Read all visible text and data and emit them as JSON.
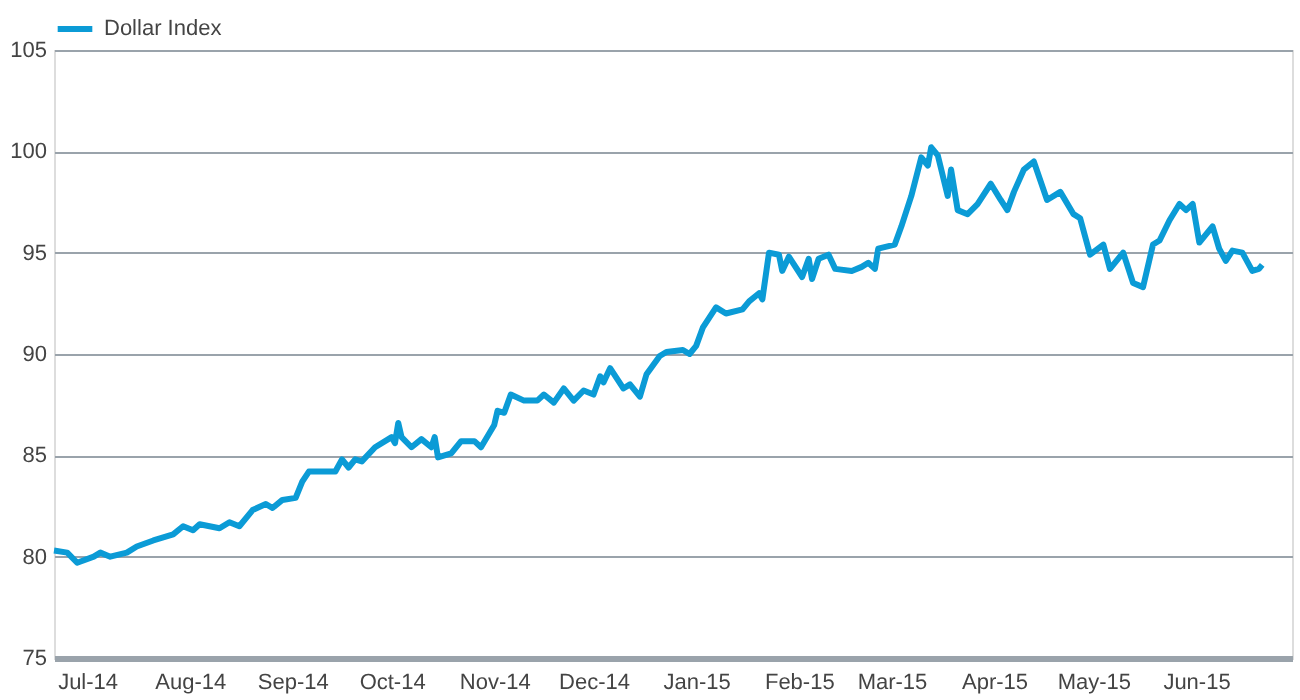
{
  "chart_data": {
    "type": "line",
    "x": [
      "2014-06-21",
      "2014-06-25",
      "2014-06-28",
      "2014-07-03",
      "2014-07-05",
      "2014-07-08",
      "2014-07-13",
      "2014-07-16",
      "2014-07-21",
      "2014-07-27",
      "2014-07-30",
      "2014-08-02",
      "2014-08-04",
      "2014-08-10",
      "2014-08-13",
      "2014-08-16",
      "2014-08-20",
      "2014-08-24",
      "2014-08-26",
      "2014-08-29",
      "2014-09-02",
      "2014-09-04",
      "2014-09-06",
      "2014-09-14",
      "2014-09-16",
      "2014-09-18",
      "2014-09-20",
      "2014-09-22",
      "2014-09-26",
      "2014-10-01",
      "2014-10-02",
      "2014-10-03",
      "2014-10-04",
      "2014-10-07",
      "2014-10-10",
      "2014-10-13",
      "2014-10-14",
      "2014-10-15",
      "2014-10-19",
      "2014-10-22",
      "2014-10-26",
      "2014-10-28",
      "2014-11-01",
      "2014-11-02",
      "2014-11-04",
      "2014-11-06",
      "2014-11-10",
      "2014-11-14",
      "2014-11-16",
      "2014-11-19",
      "2014-11-22",
      "2014-11-25",
      "2014-11-28",
      "2014-12-01",
      "2014-12-03",
      "2014-12-04",
      "2014-12-06",
      "2014-12-10",
      "2014-12-12",
      "2014-12-15",
      "2014-12-17",
      "2014-12-21",
      "2014-12-23",
      "2014-12-28",
      "2014-12-30",
      "2015-01-01",
      "2015-01-03",
      "2015-01-07",
      "2015-01-10",
      "2015-01-15",
      "2015-01-17",
      "2015-01-20",
      "2015-01-21",
      "2015-01-23",
      "2015-01-26",
      "2015-01-27",
      "2015-01-29",
      "2015-02-02",
      "2015-02-04",
      "2015-02-05",
      "2015-02-07",
      "2015-02-10",
      "2015-02-12",
      "2015-02-17",
      "2015-02-20",
      "2015-02-22",
      "2015-02-24",
      "2015-02-25",
      "2015-03-02",
      "2015-03-04",
      "2015-03-07",
      "2015-03-10",
      "2015-03-12",
      "2015-03-13",
      "2015-03-15",
      "2015-03-18",
      "2015-03-19",
      "2015-03-21",
      "2015-03-24",
      "2015-03-27",
      "2015-03-31",
      "2015-04-03",
      "2015-04-05",
      "2015-04-07",
      "2015-04-10",
      "2015-04-13",
      "2015-04-17",
      "2015-04-21",
      "2015-04-25",
      "2015-04-27",
      "2015-04-30",
      "2015-05-04",
      "2015-05-06",
      "2015-05-10",
      "2015-05-13",
      "2015-05-16",
      "2015-05-19",
      "2015-05-21",
      "2015-05-24",
      "2015-05-27",
      "2015-05-29",
      "2015-05-31",
      "2015-06-02",
      "2015-06-06",
      "2015-06-08",
      "2015-06-10",
      "2015-06-12",
      "2015-06-15",
      "2015-06-18",
      "2015-06-20",
      "2015-06-21"
    ],
    "series": [
      {
        "name": "Dollar Index",
        "color": "#0b9bd6",
        "values": [
          80.3,
          80.2,
          79.7,
          80.0,
          80.2,
          80.0,
          80.2,
          80.5,
          80.8,
          81.1,
          81.5,
          81.3,
          81.6,
          81.4,
          81.7,
          81.5,
          82.3,
          82.6,
          82.4,
          82.8,
          82.9,
          83.7,
          84.2,
          84.2,
          84.8,
          84.4,
          84.8,
          84.7,
          85.4,
          85.9,
          85.6,
          86.6,
          85.9,
          85.4,
          85.8,
          85.4,
          85.9,
          84.9,
          85.1,
          85.7,
          85.7,
          85.4,
          86.5,
          87.2,
          87.1,
          88.0,
          87.7,
          87.7,
          88.0,
          87.6,
          88.3,
          87.7,
          88.2,
          88.0,
          88.9,
          88.6,
          89.3,
          88.3,
          88.5,
          87.9,
          89.0,
          89.9,
          90.1,
          90.2,
          90.0,
          90.4,
          91.3,
          92.3,
          92.0,
          92.2,
          92.6,
          93.0,
          92.7,
          95.0,
          94.9,
          94.1,
          94.8,
          93.8,
          94.7,
          93.7,
          94.7,
          94.9,
          94.2,
          94.1,
          94.3,
          94.5,
          94.2,
          95.2,
          95.4,
          96.3,
          97.8,
          99.7,
          99.3,
          100.2,
          99.8,
          97.8,
          99.1,
          97.1,
          96.9,
          97.4,
          98.4,
          97.6,
          97.1,
          98.0,
          99.1,
          99.5,
          97.6,
          98.0,
          96.9,
          96.7,
          94.9,
          95.4,
          94.2,
          95.0,
          93.5,
          93.3,
          95.4,
          95.6,
          96.6,
          97.4,
          97.1,
          97.4,
          95.5,
          96.3,
          95.2,
          94.6,
          95.1,
          95.0,
          94.1,
          94.2,
          94.4
        ]
      }
    ],
    "xlim": [
      "2014-06-21",
      "2015-06-30"
    ],
    "xticks": [
      {
        "value": "2014-07-01",
        "label": "Jul-14"
      },
      {
        "value": "2014-08-01",
        "label": "Aug-14"
      },
      {
        "value": "2014-09-01",
        "label": "Sep-14"
      },
      {
        "value": "2014-10-01",
        "label": "Oct-14"
      },
      {
        "value": "2014-11-01",
        "label": "Nov-14"
      },
      {
        "value": "2014-12-01",
        "label": "Dec-14"
      },
      {
        "value": "2015-01-01",
        "label": "Jan-15"
      },
      {
        "value": "2015-02-01",
        "label": "Feb-15"
      },
      {
        "value": "2015-03-01",
        "label": "Mar-15"
      },
      {
        "value": "2015-04-01",
        "label": "Apr-15"
      },
      {
        "value": "2015-05-01",
        "label": "May-15"
      },
      {
        "value": "2015-06-01",
        "label": "Jun-15"
      }
    ],
    "ylim": [
      75,
      105
    ],
    "yticks": [
      75,
      80,
      85,
      90,
      95,
      100,
      105
    ],
    "grid": "y",
    "legend": "top left",
    "marker": "none",
    "line_style": "solid"
  }
}
